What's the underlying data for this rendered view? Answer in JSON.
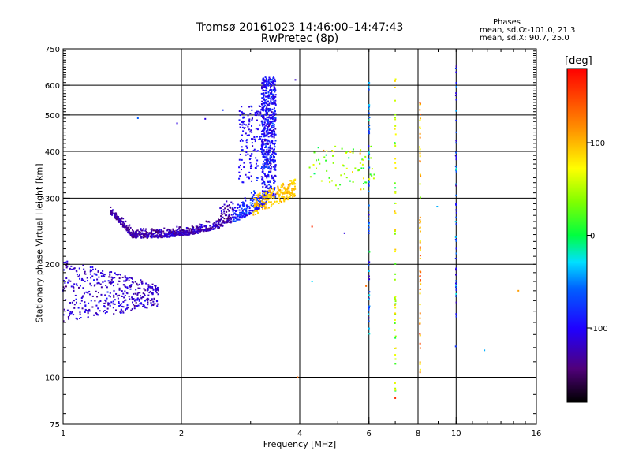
{
  "chart_data": {
    "type": "scatter",
    "title": "Tromsø 20161023 14:46:00–14:47:43",
    "subtitle": "RwPretec (8p)",
    "stats": {
      "title": "Phases",
      "line1": "mean, sd,O:-101.0, 21.3",
      "line2": "mean, sd,X:  90.7, 25.0"
    },
    "xlabel": "Frequency [MHz]",
    "ylabel": "Stationary phase Virtual Height [km]",
    "x_scale": "log",
    "y_scale": "log",
    "xlim": [
      1,
      16
    ],
    "ylim": [
      75,
      750
    ],
    "x_ticks": [
      1,
      2,
      4,
      6,
      8,
      10,
      16
    ],
    "x_tick_labels": [
      "1",
      "2",
      "4",
      "6",
      "8",
      "10",
      "16"
    ],
    "y_ticks": [
      75,
      100,
      200,
      300,
      400,
      500,
      600,
      750
    ],
    "y_tick_labels": [
      "75",
      "100",
      "200",
      "300",
      "400",
      "500",
      "600",
      "750"
    ],
    "grid_x": [
      2,
      4,
      6,
      8,
      10
    ],
    "grid_y": [
      100,
      200,
      300,
      400,
      500,
      600
    ],
    "grid": true,
    "colorbar": {
      "unit": "[deg]",
      "range": [
        -180,
        180
      ],
      "ticks": [
        100,
        0,
        -100
      ],
      "tick_labels": [
        "100",
        "0",
        "-100"
      ],
      "colormap": "rainbow (black-purple-blue-cyan-green-yellow-orange-red)"
    },
    "clusters": [
      {
        "name": "lower-cluster",
        "x_range": [
          1.0,
          1.75
        ],
        "y_range": [
          135,
          215
        ],
        "phase": -110
      },
      {
        "name": "main-trace",
        "x_range": [
          1.3,
          3.3
        ],
        "y_range": [
          230,
          320
        ],
        "phase": -120
      },
      {
        "name": "upper-column",
        "x_range": [
          3.2,
          3.45
        ],
        "y_range": [
          300,
          640
        ],
        "phase": -90
      },
      {
        "name": "x-mode-trace",
        "x_range": [
          3.0,
          3.9
        ],
        "y_range": [
          265,
          360
        ],
        "phase": 100
      },
      {
        "name": "scatter-4-5MHz",
        "x_range": [
          4.2,
          6.2
        ],
        "y_range": [
          320,
          420
        ],
        "phase": 20
      },
      {
        "name": "line-6MHz",
        "x": 6.0,
        "y_range": [
          130,
          620
        ],
        "phase": -60
      },
      {
        "name": "line-7MHz",
        "x": 7.0,
        "y_range": [
          90,
          640
        ],
        "phase": 60
      },
      {
        "name": "line-8MHz",
        "x": 8.1,
        "y_range": [
          100,
          600
        ],
        "phase": 110
      },
      {
        "name": "line-10MHz",
        "x": 10.0,
        "y_range": [
          115,
          680
        ],
        "phase": -80
      }
    ]
  }
}
